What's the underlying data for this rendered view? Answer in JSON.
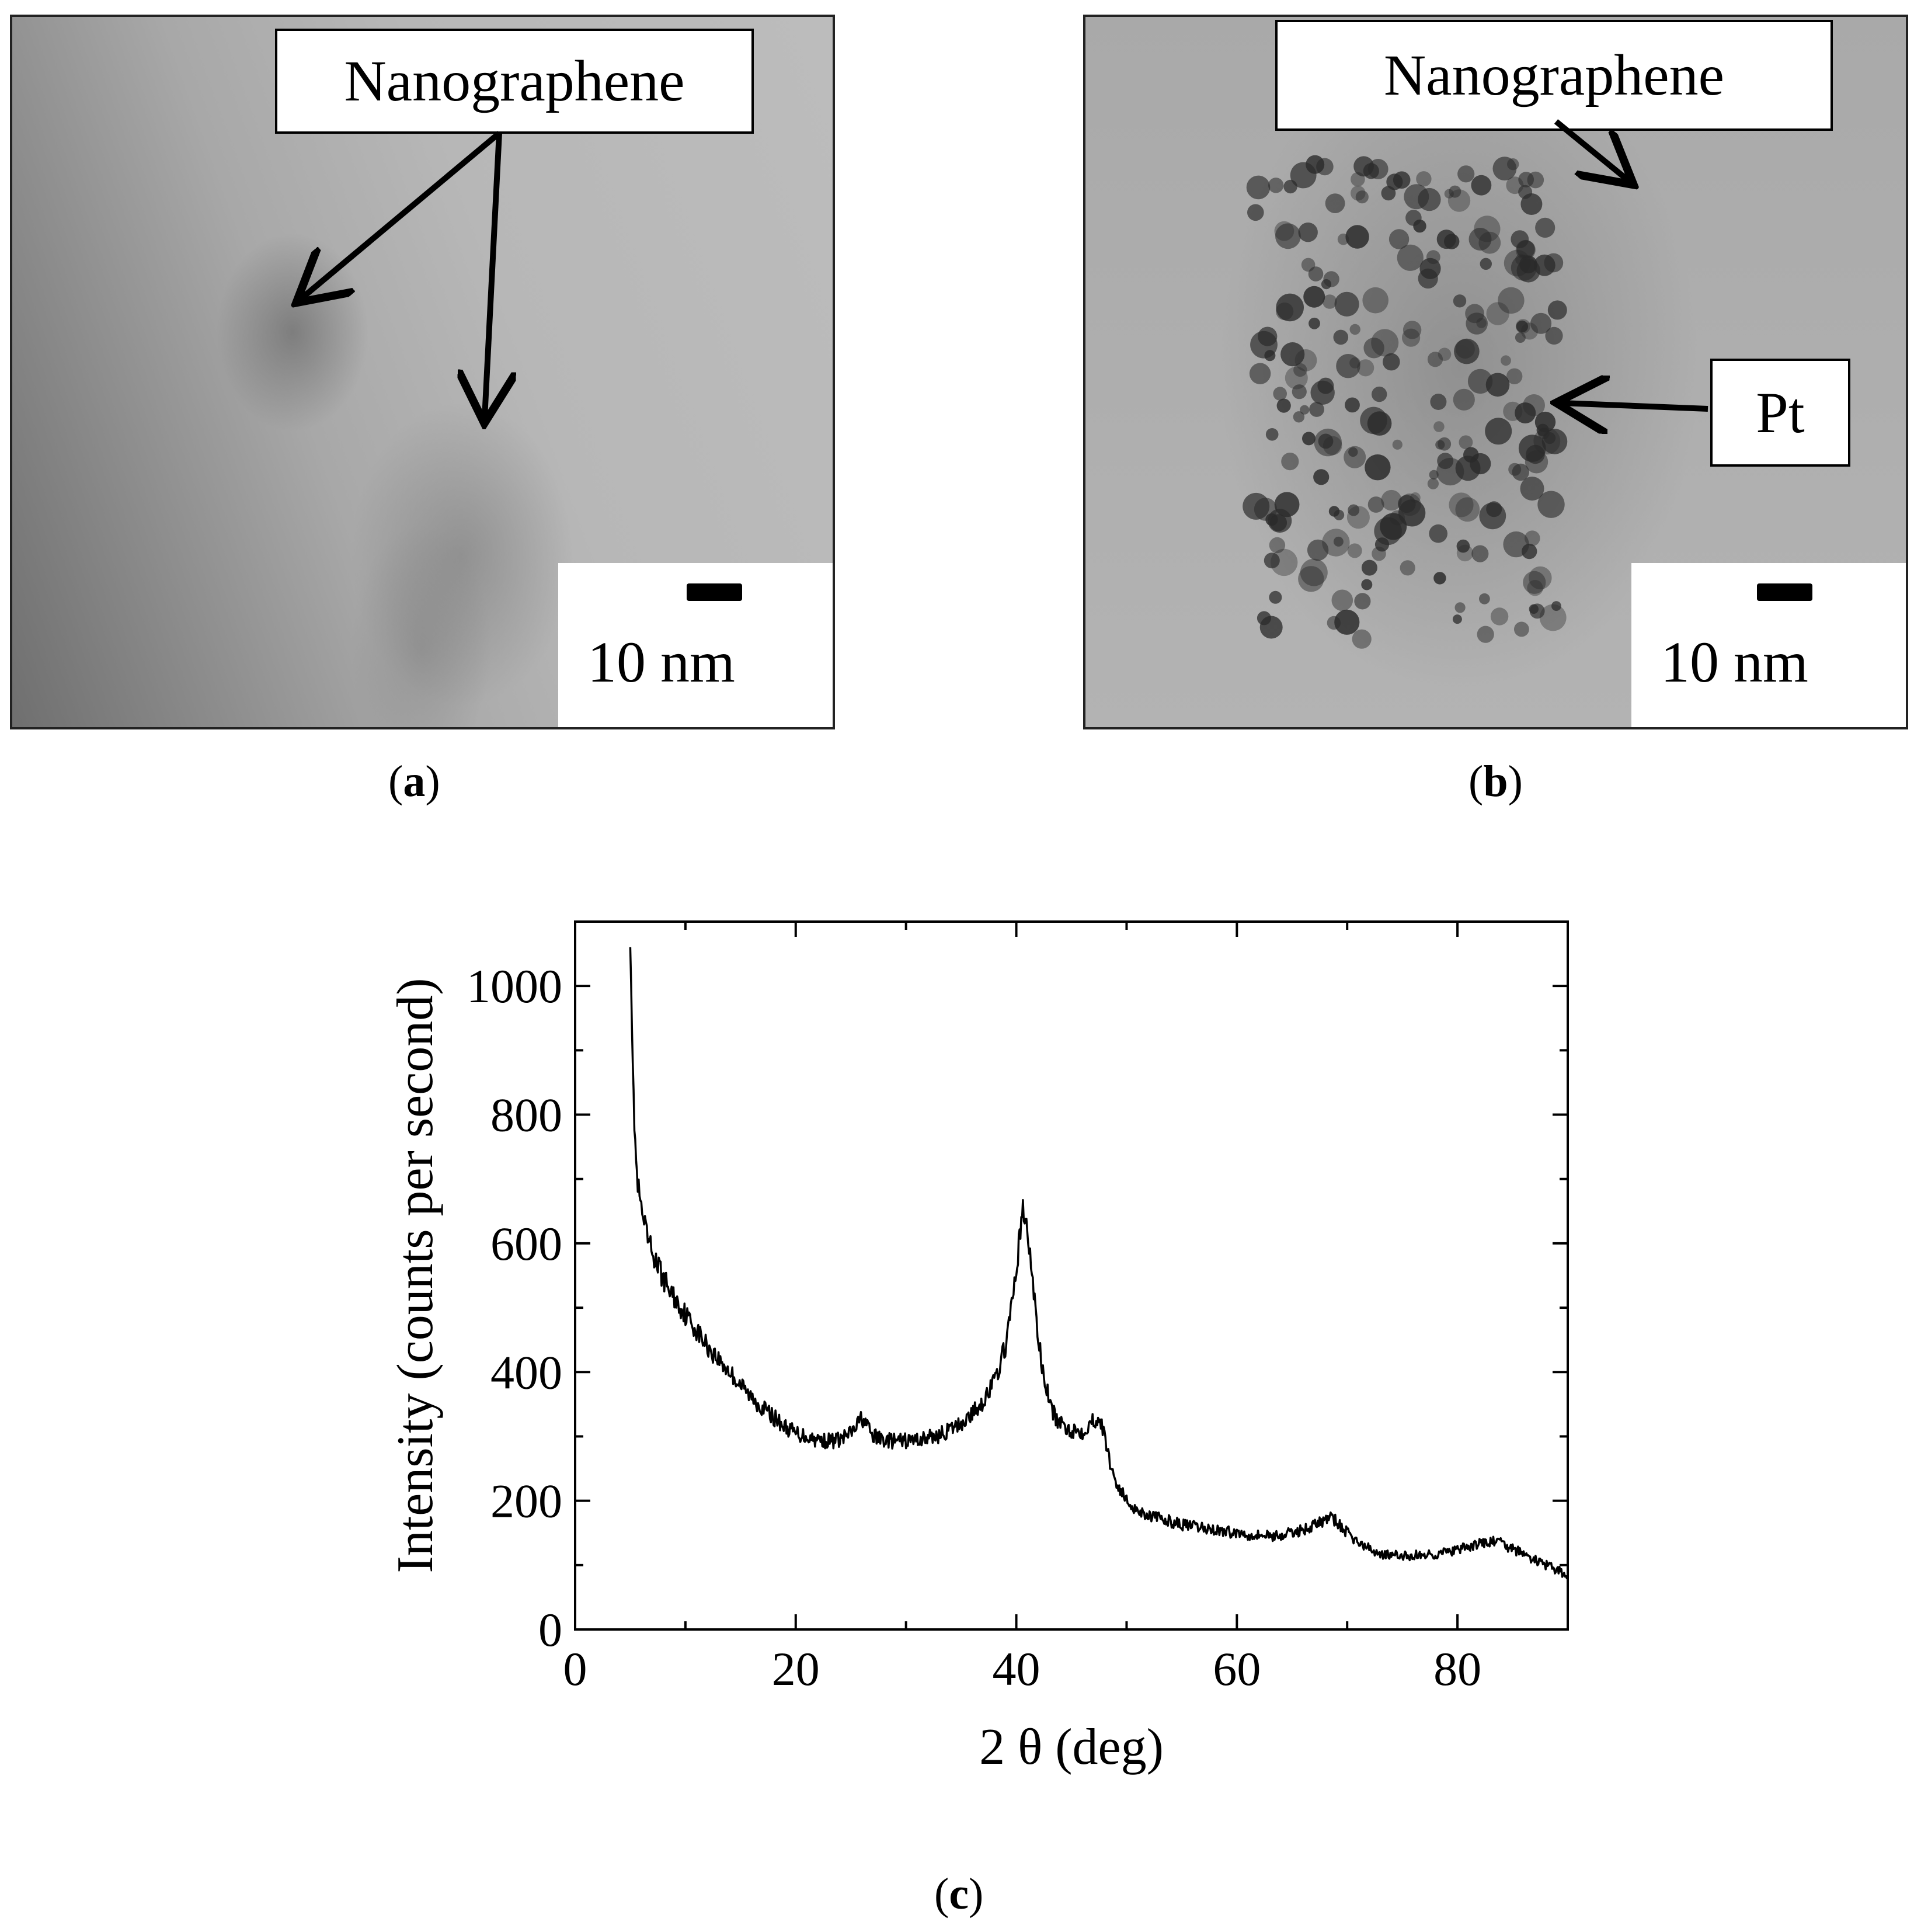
{
  "panels": {
    "a": {
      "caption_open": "(",
      "caption_letter": "a",
      "caption_close": ")",
      "callout": "Nanographene",
      "scale_label": "10 nm"
    },
    "b": {
      "caption_open": "(",
      "caption_letter": "b",
      "caption_close": ")",
      "callout_top": "Nanographene",
      "callout_right": "Pt",
      "scale_label": "10 nm"
    },
    "c": {
      "caption_open": "(",
      "caption_letter": "c",
      "caption_close": ")"
    }
  },
  "chart_data": {
    "type": "line",
    "title": "",
    "xlabel": "2 θ  (deg)",
    "ylabel": "Intensity (counts per second)",
    "xlim": [
      0,
      90
    ],
    "ylim": [
      0,
      1100
    ],
    "xticks": [
      0,
      20,
      40,
      60,
      80
    ],
    "yticks": [
      0,
      200,
      400,
      600,
      800,
      1000
    ],
    "grid": false,
    "legend": "none",
    "line_color": "#000000",
    "series": [
      {
        "x": [
          5,
          5.3,
          5.6,
          6,
          6.5,
          7,
          8,
          9,
          10,
          11,
          12,
          13,
          14,
          15,
          16,
          17,
          18,
          19,
          20,
          21,
          22,
          23,
          24,
          25,
          25.5,
          26,
          26.5,
          27,
          28,
          29,
          30,
          31,
          32,
          33,
          34,
          35,
          36,
          37,
          38,
          38.5,
          39,
          39.5,
          40,
          40.3,
          40.6,
          41,
          41.5,
          42,
          42.5,
          43,
          43.5,
          44,
          45,
          46,
          47,
          47.5,
          48,
          48.5,
          49,
          50,
          51,
          52,
          53,
          54,
          55,
          56,
          57,
          58,
          59,
          60,
          61,
          62,
          63,
          64,
          65,
          66,
          67,
          68,
          68.5,
          69,
          70,
          71,
          72,
          73,
          74,
          75,
          76,
          77,
          78,
          79,
          80,
          81,
          82,
          83,
          83.5,
          84,
          85,
          86,
          87,
          88,
          89,
          90
        ],
        "y": [
          1080,
          820,
          700,
          650,
          610,
          585,
          545,
          515,
          490,
          465,
          440,
          420,
          400,
          380,
          360,
          345,
          330,
          315,
          305,
          300,
          295,
          293,
          295,
          305,
          315,
          330,
          315,
          300,
          295,
          292,
          293,
          295,
          298,
          302,
          310,
          320,
          335,
          355,
          385,
          410,
          440,
          490,
          560,
          610,
          650,
          620,
          540,
          450,
          390,
          355,
          330,
          318,
          310,
          308,
          325,
          330,
          300,
          260,
          230,
          200,
          185,
          178,
          172,
          168,
          163,
          160,
          157,
          155,
          152,
          150,
          148,
          147,
          146,
          146,
          150,
          155,
          162,
          170,
          175,
          168,
          150,
          135,
          125,
          118,
          115,
          114,
          115,
          116,
          117,
          120,
          123,
          128,
          133,
          136,
          138,
          133,
          125,
          117,
          108,
          100,
          92,
          85
        ]
      }
    ]
  }
}
